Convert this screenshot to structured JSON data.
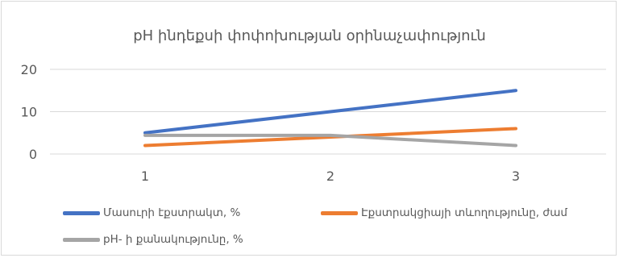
{
  "chart_data": {
    "type": "line",
    "title": "pH ինդեքսի փոփոխության օրինաչափություն",
    "xlabel": "",
    "ylabel": "",
    "categories": [
      "1",
      "2",
      "3"
    ],
    "ylim": [
      0,
      20
    ],
    "yticks": [
      "0",
      "10",
      "20"
    ],
    "grid": true,
    "legend_position": "bottom",
    "series": [
      {
        "name": "Մասուրի էքստրակտ, %",
        "values": [
          5,
          10,
          15
        ],
        "color": "#4472c4"
      },
      {
        "name": "Էքստրակցիայի տևողությունը, ժամ",
        "values": [
          2,
          4,
          6
        ],
        "color": "#ed7d31"
      },
      {
        "name": "pH- ի քանակությունը, %",
        "values": [
          4.4,
          4.4,
          2
        ],
        "color": "#a5a5a5"
      }
    ]
  }
}
